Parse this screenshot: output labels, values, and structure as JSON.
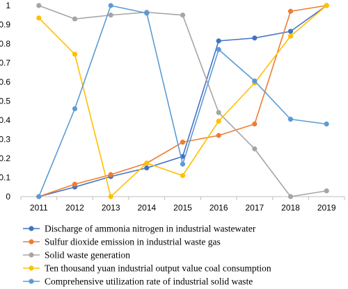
{
  "chart_data": {
    "type": "line",
    "title": "",
    "xlabel": "",
    "ylabel": "",
    "categories": [
      "2011",
      "2012",
      "2013",
      "2014",
      "2015",
      "2016",
      "2017",
      "2018",
      "2019"
    ],
    "ylim": [
      0,
      1
    ],
    "yticks": [
      0,
      0.1,
      0.2,
      0.3,
      0.4,
      0.5,
      0.6,
      0.7,
      0.8,
      0.9,
      1
    ],
    "ytick_labels": [
      "0",
      "0.1",
      "0.2",
      "0.3",
      "0.4",
      "0.5",
      "0.6",
      "0.7",
      "0.8",
      "0.9",
      "1"
    ],
    "grid": false,
    "legend_placement": "bottom",
    "series": [
      {
        "name": "Discharge of ammonia nitrogen in industrial wastewater",
        "color": "#4472c4",
        "values": [
          0,
          0.05,
          0.105,
          0.15,
          0.21,
          0.815,
          0.83,
          0.865,
          1
        ]
      },
      {
        "name": "Sulfur dioxide emission in industrial waste gas",
        "color": "#ed7d31",
        "values": [
          0,
          0.065,
          0.115,
          0.175,
          0.285,
          0.32,
          0.38,
          0.97,
          1
        ]
      },
      {
        "name": "Solid waste generation",
        "color": "#a5a5a5",
        "values": [
          1,
          0.93,
          0.95,
          0.965,
          0.95,
          0.44,
          0.25,
          0,
          0.03
        ]
      },
      {
        "name": "Ten thousand yuan industrial output value coal consumption",
        "color": "#ffc000",
        "values": [
          0.935,
          0.745,
          0,
          0.175,
          0.11,
          0.395,
          0.595,
          0.84,
          1
        ]
      },
      {
        "name": "Comprehensive utilization rate of industrial solid waste",
        "color": "#5b9bd5",
        "values": [
          0,
          0.46,
          1,
          0.96,
          0.17,
          0.77,
          0.605,
          0.405,
          0.38
        ]
      }
    ]
  }
}
